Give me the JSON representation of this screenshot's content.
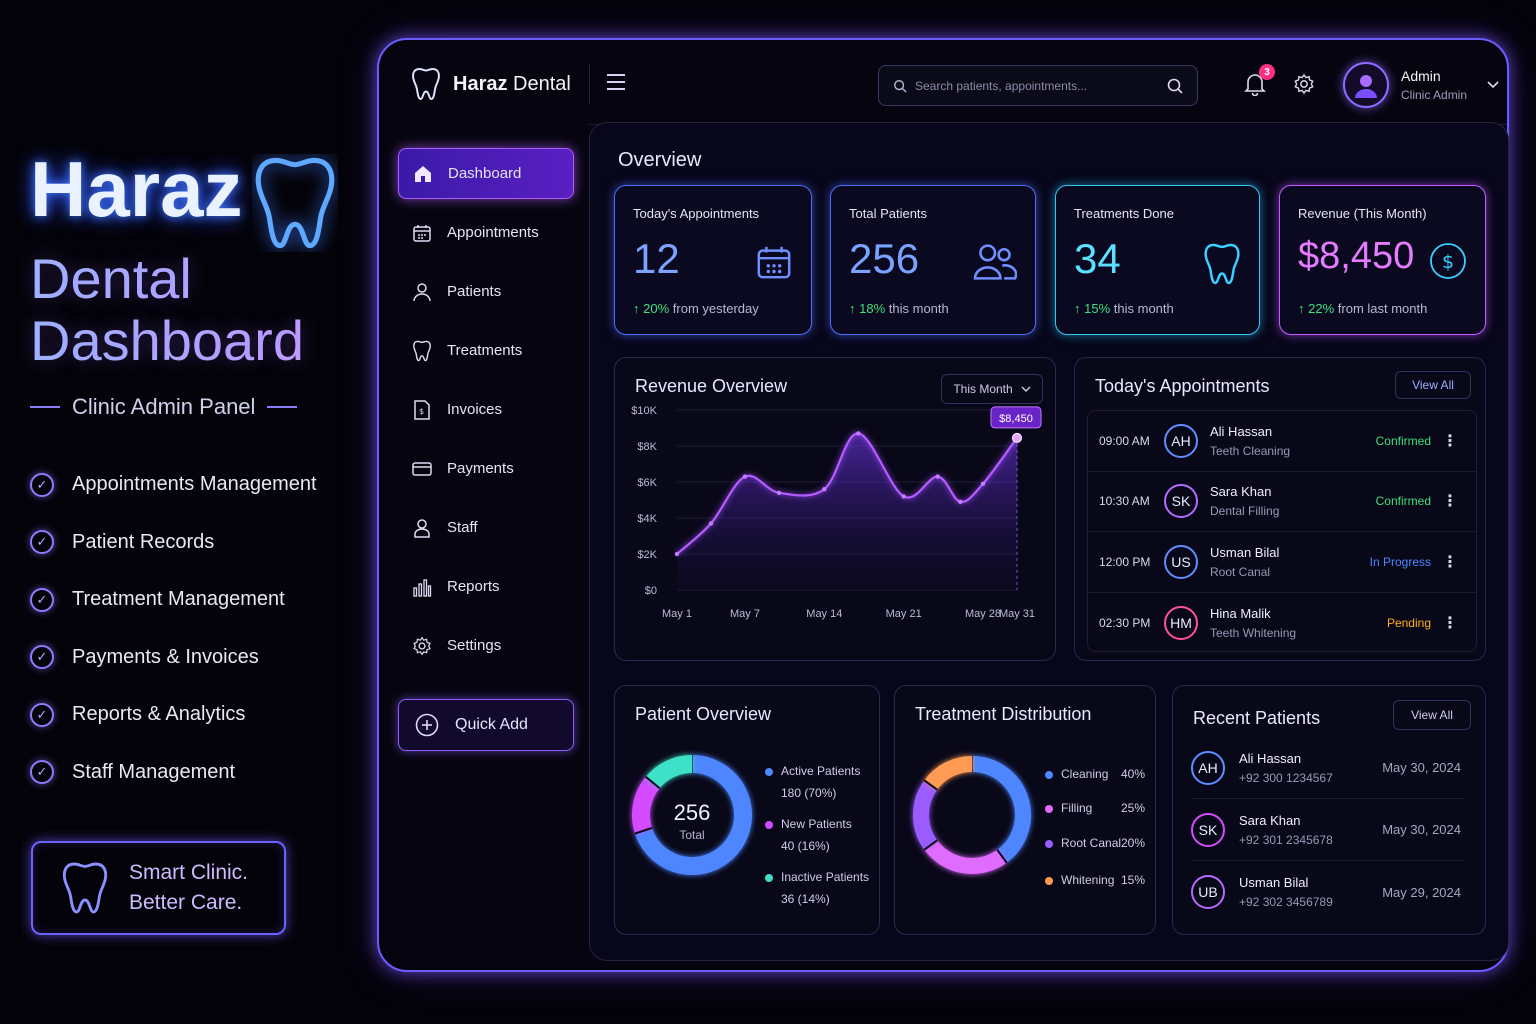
{
  "promo": {
    "title": "Haraz",
    "subtitle_1": "Dental",
    "subtitle_2": "Dashboard",
    "tagline": "Clinic Admin Panel",
    "features": [
      "Appointments Management",
      "Patient Records",
      "Treatment Management",
      "Payments & Invoices",
      "Reports & Analytics",
      "Staff Management"
    ],
    "slogan_1": "Smart Clinic.",
    "slogan_2": "Better Care."
  },
  "header": {
    "brand_bold": "Haraz",
    "brand_rest": " Dental",
    "search_placeholder": "Search patients, appointments...",
    "notification_count": "3",
    "user_name": "Admin",
    "user_role": "Clinic Admin"
  },
  "sidebar": {
    "items": [
      {
        "label": "Dashboard",
        "icon": "home-icon"
      },
      {
        "label": "Appointments",
        "icon": "calendar-icon"
      },
      {
        "label": "Patients",
        "icon": "user-icon"
      },
      {
        "label": "Treatments",
        "icon": "tooth-icon"
      },
      {
        "label": "Invoices",
        "icon": "invoice-icon"
      },
      {
        "label": "Payments",
        "icon": "card-icon"
      },
      {
        "label": "Staff",
        "icon": "staff-icon"
      },
      {
        "label": "Reports",
        "icon": "bar-chart-icon"
      },
      {
        "label": "Settings",
        "icon": "gear-icon"
      }
    ],
    "quick_add": "Quick Add"
  },
  "overview": {
    "title": "Overview",
    "stats": [
      {
        "label": "Today's Appointments",
        "value": "12",
        "trend_value": "20%",
        "trend_text": " from yesterday",
        "color": "#5f8dff"
      },
      {
        "label": "Total Patients",
        "value": "256",
        "trend_value": "18%",
        "trend_text": " this month",
        "color": "#5f8dff"
      },
      {
        "label": "Treatments Done",
        "value": "34",
        "trend_value": "15%",
        "trend_text": " this month",
        "color": "#38d4ff"
      },
      {
        "label": "Revenue (This Month)",
        "value": "$8,450",
        "trend_value": "22%",
        "trend_text": " from last month",
        "color": "#e065ff"
      }
    ]
  },
  "revenue": {
    "title": "Revenue Overview",
    "period": "This Month",
    "highlight": "$8,450"
  },
  "chart_data": {
    "type": "area",
    "x": [
      "May 1",
      "May 4",
      "May 7",
      "May 10",
      "May 14",
      "May 17",
      "May 21",
      "May 24",
      "May 26",
      "May 28",
      "May 31"
    ],
    "values": [
      2000,
      3700,
      6300,
      5400,
      5600,
      8700,
      5200,
      6300,
      4900,
      5900,
      8450
    ],
    "ylim": [
      0,
      10000
    ],
    "y_ticks": [
      "$0",
      "$2K",
      "$4K",
      "$6K",
      "$8K",
      "$10K"
    ],
    "x_ticks": [
      "May 1",
      "May 7",
      "May 14",
      "May 21",
      "May 28",
      "May 31"
    ],
    "grid": true
  },
  "appointments": {
    "title": "Today's Appointments",
    "view_all": "View All",
    "items": [
      {
        "time": "09:00 AM",
        "initials": "AH",
        "name": "Ali Hassan",
        "treatment": "Teeth Cleaning",
        "status": "Confirmed",
        "status_color": "#3ee07b",
        "ring": "#5f8dff"
      },
      {
        "time": "10:30 AM",
        "initials": "SK",
        "name": "Sara Khan",
        "treatment": "Dental Filling",
        "status": "Confirmed",
        "status_color": "#3ee07b",
        "ring": "#b36bff"
      },
      {
        "time": "12:00 PM",
        "initials": "US",
        "name": "Usman Bilal",
        "treatment": "Root Canal",
        "status": "In Progress",
        "status_color": "#4d86ff",
        "ring": "#5f8dff"
      },
      {
        "time": "02:30 PM",
        "initials": "HM",
        "name": "Hina Malik",
        "treatment": "Teeth Whitening",
        "status": "Pending",
        "status_color": "#ffb020",
        "ring": "#ff4fa0"
      }
    ]
  },
  "patient_overview": {
    "title": "Patient Overview",
    "total": "256",
    "total_label": "Total",
    "legend": [
      {
        "label": "Active Patients",
        "value": "180 (70%)",
        "color": "#4d86ff",
        "share": 70
      },
      {
        "label": "New Patients",
        "value": "40 (16%)",
        "color": "#d44bff",
        "share": 16
      },
      {
        "label": "Inactive Patients",
        "value": "36 (14%)",
        "color": "#3ee0c8",
        "share": 14
      }
    ]
  },
  "treatment_distribution": {
    "title": "Treatment Distribution",
    "legend": [
      {
        "label": "Cleaning",
        "value": "40%",
        "color": "#4d86ff",
        "share": 40
      },
      {
        "label": "Filling",
        "value": "25%",
        "color": "#e06bff",
        "share": 25
      },
      {
        "label": "Root Canal",
        "value": "20%",
        "color": "#9b5cff",
        "share": 20
      },
      {
        "label": "Whitening",
        "value": "15%",
        "color": "#ff9a52",
        "share": 15
      }
    ]
  },
  "recent_patients": {
    "title": "Recent Patients",
    "view_all": "View All",
    "items": [
      {
        "initials": "AH",
        "name": "Ali Hassan",
        "phone": "+92 300 1234567",
        "date": "May 30, 2024",
        "ring": "#5f8dff"
      },
      {
        "initials": "SK",
        "name": "Sara Khan",
        "phone": "+92 301 2345678",
        "date": "May 30, 2024",
        "ring": "#d44bff"
      },
      {
        "initials": "UB",
        "name": "Usman Bilal",
        "phone": "+92 302 3456789",
        "date": "May 29, 2024",
        "ring": "#b36bff"
      }
    ]
  }
}
